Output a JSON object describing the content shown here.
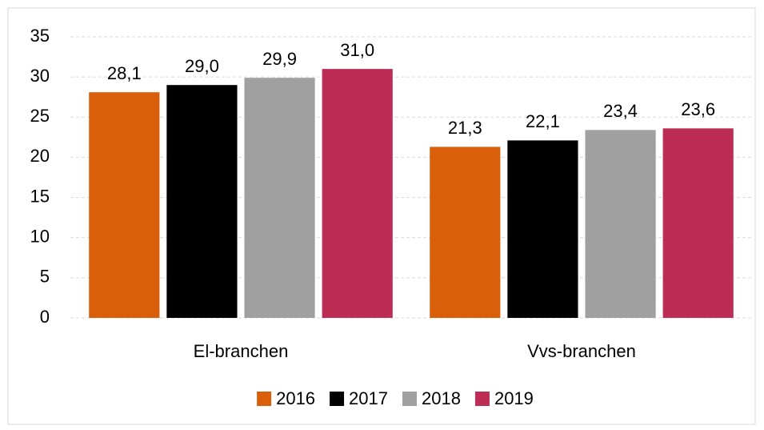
{
  "chart_data": {
    "type": "bar",
    "categories": [
      "El-branchen",
      "Vvs-branchen"
    ],
    "series": [
      {
        "name": "2016",
        "color": "#d95f0a",
        "values": [
          28.1,
          21.3
        ],
        "value_labels": [
          "28,1",
          "21,3"
        ]
      },
      {
        "name": "2017",
        "color": "#000000",
        "values": [
          29.0,
          22.1
        ],
        "value_labels": [
          "29,0",
          "22,1"
        ]
      },
      {
        "name": "2018",
        "color": "#a0a0a0",
        "values": [
          29.9,
          23.4
        ],
        "value_labels": [
          "29,9",
          "23,4"
        ]
      },
      {
        "name": "2019",
        "color": "#bc2c55",
        "values": [
          31.0,
          23.6
        ],
        "value_labels": [
          "31,0",
          "23,6"
        ]
      }
    ],
    "ylim": [
      0,
      35
    ],
    "yticks": [
      0,
      5,
      10,
      15,
      20,
      25,
      30,
      35
    ],
    "grid": true,
    "legend": "bottom"
  }
}
